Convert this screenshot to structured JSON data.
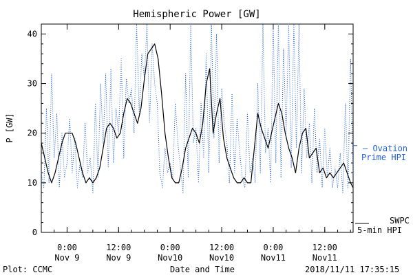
{
  "chart_data": {
    "type": "line",
    "title": "Hemispheric Power [GW]",
    "xlabel": "Date and Time",
    "ylabel": "P [GW]",
    "ylim": [
      0,
      42
    ],
    "y_ticks": [
      0,
      10,
      20,
      30,
      40
    ],
    "x_ticks": [
      {
        "t": 6,
        "line1": "0:00",
        "line2": "Nov 9"
      },
      {
        "t": 18,
        "line1": "12:00",
        "line2": "Nov 9"
      },
      {
        "t": 30,
        "line1": "0:00",
        "line2": "Nov10"
      },
      {
        "t": 42,
        "line1": "12:00",
        "line2": "Nov10"
      },
      {
        "t": 54,
        "line1": "0:00",
        "line2": "Nov11"
      },
      {
        "t": 66,
        "line1": "12:00",
        "line2": "Nov11"
      }
    ],
    "series": [
      {
        "name": "Ovation Prime HPI",
        "color": "#1f5fd6",
        "style": "dotted",
        "x": [
          0,
          0.6,
          1.2,
          1.8,
          2.4,
          3.0,
          3.6,
          4.2,
          4.8,
          5.4,
          6.0,
          6.6,
          7.2,
          7.8,
          8.4,
          9.0,
          9.6,
          10.2,
          10.8,
          11.4,
          12.0,
          12.6,
          13.2,
          13.8,
          14.4,
          15.0,
          15.6,
          16.2,
          16.8,
          17.4,
          18.0,
          18.6,
          19.2,
          19.8,
          20.4,
          21.0,
          21.6,
          22.2,
          22.8,
          23.4,
          24.0,
          24.6,
          25.2,
          25.8,
          26.4,
          27.0,
          27.6,
          28.2,
          28.8,
          29.4,
          30.0,
          30.6,
          31.2,
          31.8,
          32.4,
          33.0,
          33.6,
          34.2,
          34.8,
          35.4,
          36.0,
          36.6,
          37.2,
          37.8,
          38.4,
          39.0,
          39.6,
          40.2,
          40.8,
          41.4,
          42.0,
          42.6,
          43.2,
          43.8,
          44.4,
          45.0,
          45.6,
          46.2,
          46.8,
          47.4,
          48.0,
          48.6,
          49.2,
          49.8,
          50.4,
          51.0,
          51.6,
          52.2,
          52.8,
          53.4,
          54.0,
          54.6,
          55.2,
          55.8,
          56.4,
          57.0,
          57.6,
          58.2,
          58.8,
          59.4,
          60.0,
          60.6,
          61.2,
          61.8,
          62.4,
          63.0,
          63.6,
          64.2,
          64.8,
          65.4,
          66.0,
          66.6,
          67.2,
          67.8,
          68.4,
          69.0,
          69.6,
          70.2,
          70.8,
          71.4,
          72.0,
          72.6
        ],
        "values": [
          12,
          9,
          25,
          10,
          32,
          15,
          24,
          9,
          20,
          11,
          14,
          23,
          12,
          19,
          9,
          14,
          11,
          22,
          12,
          15,
          8,
          26,
          11,
          30,
          18,
          32,
          13,
          33,
          14,
          25,
          20,
          35,
          15,
          31,
          26,
          29,
          20,
          42,
          24,
          36,
          31,
          42,
          22,
          38,
          30,
          26,
          12,
          9,
          17,
          12,
          14,
          11,
          26,
          18,
          13,
          8,
          32,
          11,
          42,
          18,
          21,
          10,
          26,
          15,
          36,
          12,
          42,
          19,
          40,
          14,
          29,
          22,
          18,
          10,
          28,
          12,
          23,
          16,
          11,
          9,
          24,
          12,
          15,
          10,
          30,
          12,
          42,
          16,
          21,
          10,
          42,
          14,
          42,
          11,
          37,
          20,
          42,
          13,
          42,
          17,
          42,
          12,
          29,
          15,
          22,
          10,
          25,
          12,
          19,
          9,
          21,
          11,
          17,
          9,
          13,
          9,
          16,
          8,
          26,
          9,
          35,
          12
        ]
      },
      {
        "name": "SWPC 5-min HPI",
        "color": "#000000",
        "style": "solid",
        "x": [
          0,
          0.8,
          1.6,
          2.4,
          3.2,
          4.0,
          4.8,
          5.6,
          6.4,
          7.2,
          8.0,
          8.8,
          9.6,
          10.4,
          11.2,
          12.0,
          12.8,
          13.6,
          14.4,
          15.2,
          16.0,
          16.8,
          17.6,
          18.4,
          19.2,
          20.0,
          20.8,
          21.6,
          22.4,
          23.2,
          24.0,
          24.8,
          25.6,
          26.4,
          27.2,
          28.0,
          28.8,
          29.6,
          30.4,
          31.2,
          32.0,
          32.8,
          33.6,
          34.4,
          35.2,
          36.0,
          36.8,
          37.6,
          38.4,
          39.2,
          40.0,
          40.8,
          41.6,
          42.4,
          43.2,
          44.0,
          44.8,
          45.6,
          46.4,
          47.2,
          48.0,
          48.8,
          49.6,
          50.4,
          51.2,
          52.0,
          52.8,
          53.6,
          54.4,
          55.2,
          56.0,
          56.8,
          57.6,
          58.4,
          59.2,
          60.0,
          60.8,
          61.6,
          62.4,
          63.2,
          64.0,
          64.8,
          65.6,
          66.4,
          67.2,
          68.0,
          68.8,
          69.6,
          70.4,
          71.2,
          72.0,
          72.6
        ],
        "values": [
          18,
          15,
          12,
          10,
          12,
          15,
          18,
          20,
          20,
          20,
          18,
          15,
          12,
          10,
          11,
          10,
          11,
          13,
          17,
          21,
          22,
          21,
          19,
          20,
          24,
          27,
          26,
          24,
          22,
          25,
          31,
          36,
          37,
          38,
          35,
          28,
          20,
          15,
          11,
          10,
          10,
          13,
          17,
          19,
          21,
          20,
          18,
          22,
          30,
          33,
          20,
          24,
          27,
          19,
          15,
          13,
          11,
          10,
          10,
          11,
          10,
          10,
          17,
          24,
          21,
          19,
          17,
          20,
          23,
          26,
          24,
          20,
          17,
          15,
          12,
          17,
          20,
          21,
          15,
          16,
          17,
          12,
          13,
          11,
          12,
          11,
          12,
          13,
          14,
          12,
          10,
          9
        ]
      }
    ],
    "legend": {
      "ovation_line1": "– Ovation",
      "ovation_line2": "Prime HPI",
      "swpc_line1": "SWPC",
      "swpc_line2": "5-min HPI"
    },
    "footer": {
      "left": "Plot: CCMC",
      "right": "2018/11/11 17:35:15"
    },
    "grid": false,
    "legend_placement": "right"
  }
}
